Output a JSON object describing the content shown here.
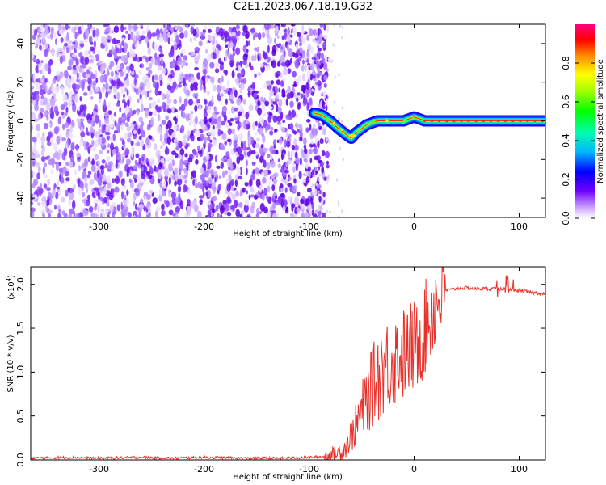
{
  "title": "C2E1.2023.067.18.19.G32",
  "chart_data": [
    {
      "type": "heatmap",
      "name": "spectrogram",
      "xlabel": "Height of straight line (km)",
      "ylabel": "Frequency (Hz)",
      "xlim": [
        -365,
        125
      ],
      "ylim": [
        -50,
        50
      ],
      "xticks": [
        -300,
        -200,
        -100,
        0,
        100
      ],
      "yticks": [
        -40,
        -20,
        0,
        20,
        40
      ],
      "grid": false,
      "noise_region": {
        "x": [
          -365,
          -90
        ],
        "y": [
          -50,
          50
        ]
      },
      "signal_track": {
        "x": [
          -95,
          -88,
          -80,
          -72,
          -65,
          -60,
          -55,
          -50,
          -45,
          -40,
          -35,
          -30,
          -25,
          -20,
          -15,
          -10,
          -5,
          0,
          5,
          10,
          20,
          40,
          60,
          80,
          100,
          125
        ],
        "y": [
          4,
          3,
          0,
          -4,
          -7,
          -9,
          -6,
          -4,
          -2,
          -1,
          0,
          0,
          0,
          0,
          0,
          0,
          1,
          2,
          1,
          0,
          0,
          0,
          0,
          0,
          0,
          0
        ]
      },
      "colorbar": {
        "label": "Normalized spectral amplitude",
        "range": [
          0,
          1
        ],
        "ticks": [
          0.0,
          0.2,
          0.4,
          0.6,
          0.8
        ],
        "tick_labels": [
          "0.0",
          "0.2",
          "0.4",
          "0.6",
          "0.8"
        ]
      }
    },
    {
      "type": "line",
      "name": "snr",
      "xlabel": "Height of straight line (km)",
      "ylabel": "SNR (10 * v/v)",
      "yscale_label": "(x10",
      "yscale_exp": "4",
      "xlim": [
        -365,
        125
      ],
      "ylim": [
        0,
        2.2
      ],
      "xticks": [
        -300,
        -200,
        -100,
        0,
        100
      ],
      "yticks": [
        0.0,
        0.5,
        1.0,
        1.5,
        2.0
      ],
      "ytick_labels": [
        "0.0",
        "0.5",
        "1.0",
        "1.5",
        "2.0"
      ],
      "color": "#e8302a",
      "grid": false,
      "series": [
        {
          "x": [
            -365,
            -330,
            -300,
            -260,
            -230,
            -200,
            -160,
            -130,
            -100,
            -85,
            -75,
            -70,
            -65,
            -60,
            -55,
            -50,
            -45,
            -40,
            -35,
            -30,
            -25,
            -20,
            -15,
            -10,
            -5,
            0,
            5,
            10,
            15,
            20,
            25,
            30,
            40,
            50,
            60,
            70,
            80,
            90,
            100,
            110,
            125
          ],
          "y": [
            0.02,
            0.03,
            0.02,
            0.03,
            0.02,
            0.03,
            0.02,
            0.02,
            0.03,
            0.04,
            0.07,
            0.1,
            0.16,
            0.28,
            0.4,
            0.55,
            0.7,
            0.82,
            0.95,
            1.05,
            1.1,
            1.12,
            1.2,
            1.2,
            1.25,
            1.3,
            1.38,
            1.48,
            1.62,
            1.78,
            1.88,
            1.93,
            1.95,
            1.96,
            1.95,
            1.95,
            1.95,
            1.94,
            1.93,
            1.91,
            1.89
          ]
        }
      ]
    }
  ]
}
